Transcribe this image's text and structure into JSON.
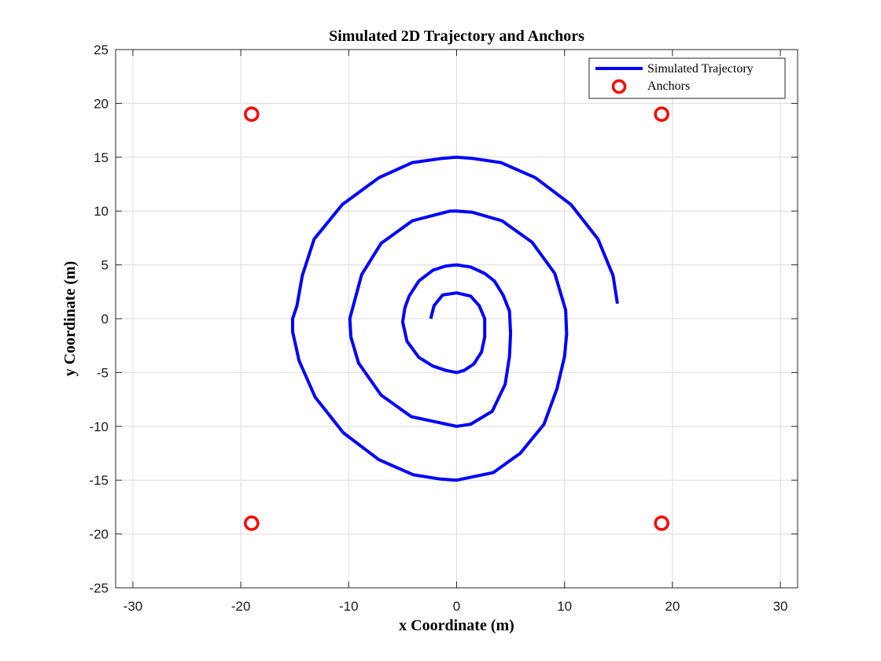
{
  "chart_data": {
    "type": "line",
    "title": "Simulated 2D Trajectory and Anchors",
    "xlabel": "x Coordinate (m)",
    "ylabel": "y Coordinate (m)",
    "xlim": [
      -31.6,
      31.6
    ],
    "ylim": [
      -25,
      25
    ],
    "xticks": [
      -30,
      -20,
      -10,
      0,
      10,
      20,
      30
    ],
    "yticks": [
      -25,
      -20,
      -15,
      -10,
      -5,
      0,
      5,
      10,
      15,
      20,
      25
    ],
    "grid": true,
    "legend_position": "top-right",
    "colors": {
      "trajectory": "#0000ff",
      "anchors": "#ff0000"
    },
    "series": [
      {
        "name": "Simulated Trajectory",
        "kind": "line",
        "x": [
          -2.4,
          -2.1,
          -1.3,
          0,
          1.3,
          2.1,
          2.6,
          2.6,
          2.3,
          1.6,
          0.7,
          0,
          -1,
          -2.2,
          -3.5,
          -4.6,
          -5,
          -4.8,
          -4.4,
          -3.5,
          -2.2,
          -1,
          0,
          1.3,
          2.6,
          3.5,
          4.3,
          4.9,
          5,
          4.9,
          4.5,
          3.3,
          1.3,
          0,
          -4.2,
          -7,
          -9.1,
          -9.8,
          -9.9,
          -9.5,
          -8.8,
          -7,
          -4.1,
          -0.6,
          0,
          1.4,
          4.2,
          7,
          9.1,
          10.1,
          10.2,
          10.0,
          9.3,
          8.1,
          5.9,
          3.4,
          0,
          -1.5,
          -4,
          -7.2,
          -10.5,
          -13.1,
          -14.6,
          -15.2,
          -15.2,
          -14.8,
          -14.3,
          -13.2,
          -10.6,
          -7.2,
          -4.1,
          -1.3,
          0,
          1.4,
          4.1,
          7.3,
          10.6,
          13.1,
          14.5,
          14.9
        ],
        "y": [
          0,
          1.2,
          2.2,
          2.4,
          2.1,
          1.2,
          0,
          -1.7,
          -3.1,
          -4.2,
          -4.8,
          -5,
          -4.8,
          -4.4,
          -3.6,
          -2.1,
          -0.3,
          1,
          2.1,
          3.5,
          4.5,
          4.9,
          5,
          4.8,
          4.2,
          3.5,
          2.2,
          0.7,
          -1.4,
          -3.5,
          -6.1,
          -8.6,
          -9.8,
          -10,
          -9.1,
          -7.1,
          -4.1,
          -1.7,
          0,
          1.5,
          4.1,
          7,
          9.1,
          10,
          10,
          9.9,
          9.1,
          7.1,
          4.2,
          0.8,
          -1.4,
          -3.5,
          -6.5,
          -9.8,
          -12.5,
          -14.3,
          -15,
          -14.9,
          -14.5,
          -13.1,
          -10.6,
          -7.3,
          -3.9,
          -1.2,
          0,
          1.2,
          4,
          7.4,
          10.6,
          13.1,
          14.5,
          14.9,
          15,
          14.9,
          14.5,
          13.1,
          10.6,
          7.4,
          4.0,
          1.4
        ]
      },
      {
        "name": "Anchors",
        "kind": "marker",
        "x": [
          -19,
          19,
          -19,
          19
        ],
        "y": [
          19,
          19,
          -19,
          -19
        ]
      }
    ]
  }
}
